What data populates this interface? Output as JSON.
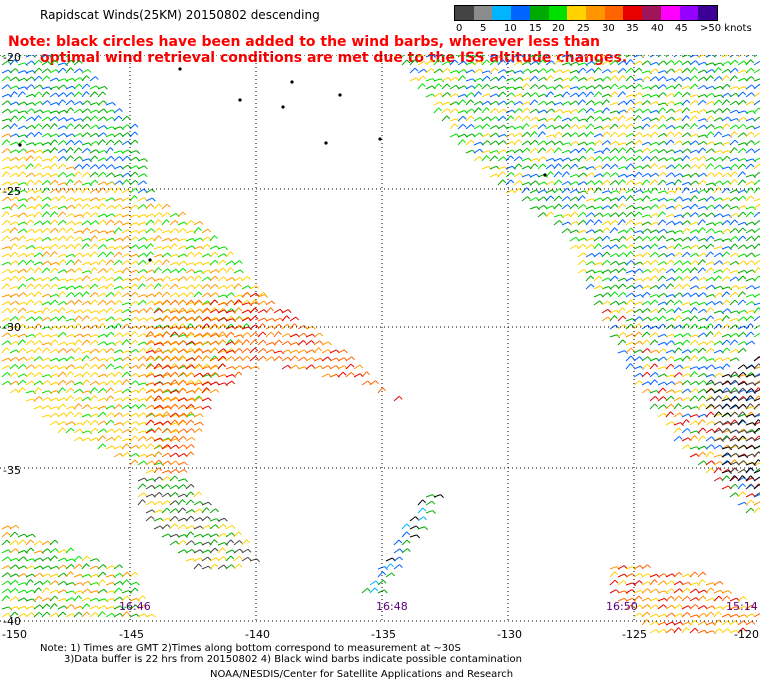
{
  "title": "Rapidscat Winds(25KM) 20150802 descending",
  "note_line1": "Note: black circles have been added to the wind barbs, wherever less than",
  "note_line2": "optimal wind retrieval conditions are met due to the ISS altitude changes.",
  "legend": {
    "labels": [
      "0",
      "5",
      "10",
      "15",
      "20",
      "25",
      "30",
      "35",
      "40",
      "45",
      ">50 knots"
    ],
    "colors": [
      "#444444",
      "#8c8c8c",
      "#00b4ff",
      "#0064ff",
      "#00aa00",
      "#00e000",
      "#ffd200",
      "#ff9600",
      "#ff6400",
      "#e60000",
      "#a0145a",
      "#ff00ff",
      "#9600ff",
      "#3c0096"
    ]
  },
  "map": {
    "lat_labels": [
      "-20",
      "-25",
      "-30",
      "-35",
      "-40"
    ],
    "lon_labels": [
      "-150",
      "-145",
      "-140",
      "-135",
      "-130",
      "-125",
      "-120"
    ],
    "time_labels": [
      "16:46",
      "16:48",
      "16:50",
      "15:14"
    ]
  },
  "footer": {
    "line1": "Note: 1) Times are GMT 2)Times along bottom correspond to measurement at ~30S",
    "line2": "3)Data buffer is 22 hrs from 20150802 4) Black wind barbs indicate possible contamination",
    "line3": "NOAA/NESDIS/Center for Satellite Applications and Research"
  }
}
